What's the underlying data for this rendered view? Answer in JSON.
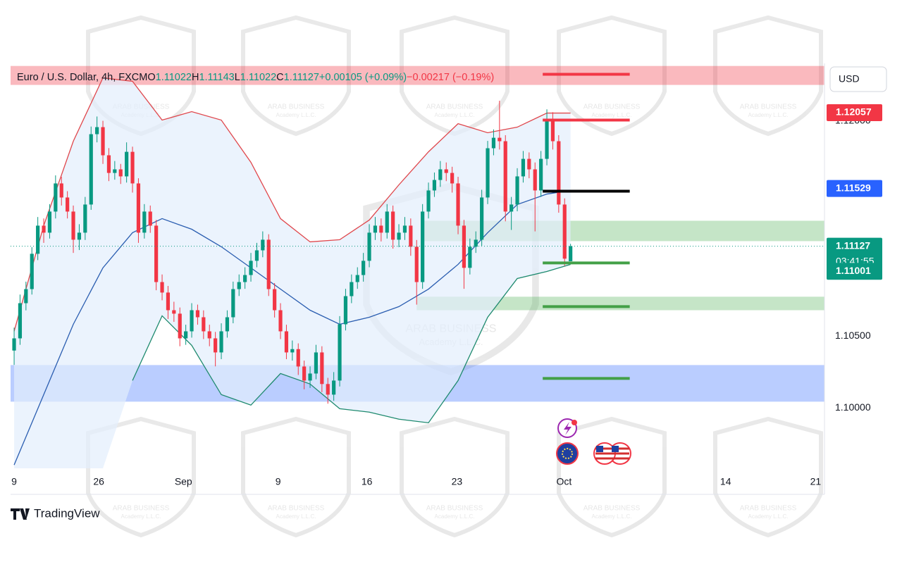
{
  "chart_data": {
    "type": "candlestick",
    "title": "Euro / U.S. Dollar, 4h, FXCM",
    "ohlc_names": [
      "O",
      "H",
      "L",
      "C"
    ],
    "change_text": "+0.00105 (+0.09%)",
    "hidden_change_text": "−0.00217 (−0.19%)",
    "currency": "USD",
    "countdown": "03:41:55",
    "brand": "TradingView",
    "watermark": {
      "name": "ARAB BUSINESS",
      "sub": "Academy L.L.C."
    },
    "up_color": "#089981",
    "down_color": "#f23645",
    "candles": [
      [
        1.104,
        1.1056,
        1.103,
        1.10485
      ],
      [
        1.10485,
        1.1079,
        1.1044,
        1.1073
      ],
      [
        1.1073,
        1.1088,
        1.1068,
        1.10828
      ],
      [
        1.10828,
        1.1112,
        1.1079,
        1.11074
      ],
      [
        1.11074,
        1.1133,
        1.1103,
        1.1127
      ],
      [
        1.1127,
        1.1132,
        1.1115,
        1.11221
      ],
      [
        1.11221,
        1.1142,
        1.1118,
        1.11368
      ],
      [
        1.11368,
        1.1162,
        1.1132,
        1.11564
      ],
      [
        1.11564,
        1.1161,
        1.1141,
        1.11466
      ],
      [
        1.11466,
        1.1151,
        1.1132,
        1.11368
      ],
      [
        1.11368,
        1.1141,
        1.1108,
        1.11172
      ],
      [
        1.11172,
        1.1128,
        1.111,
        1.11221
      ],
      [
        1.11221,
        1.1147,
        1.1117,
        1.11417
      ],
      [
        1.11417,
        1.1196,
        1.1138,
        1.11907
      ],
      [
        1.11907,
        1.1203,
        1.1185,
        1.11956
      ],
      [
        1.11956,
        1.12,
        1.117,
        1.1176
      ],
      [
        1.1176,
        1.1181,
        1.1158,
        1.11637
      ],
      [
        1.11637,
        1.1172,
        1.1159,
        1.11662
      ],
      [
        1.11662,
        1.117,
        1.1156,
        1.11613
      ],
      [
        1.11613,
        1.1185,
        1.1157,
        1.11784
      ],
      [
        1.11784,
        1.1182,
        1.115,
        1.11564
      ],
      [
        1.11564,
        1.116,
        1.1115,
        1.11221
      ],
      [
        1.11221,
        1.1142,
        1.1118,
        1.11368
      ],
      [
        1.11368,
        1.1141,
        1.1122,
        1.1127
      ],
      [
        1.1127,
        1.1131,
        1.1082,
        1.10877
      ],
      [
        1.10877,
        1.1093,
        1.1075,
        1.10804
      ],
      [
        1.10804,
        1.1085,
        1.1062,
        1.10681
      ],
      [
        1.10681,
        1.1074,
        1.106,
        1.10657
      ],
      [
        1.10657,
        1.107,
        1.1043,
        1.10485
      ],
      [
        1.10485,
        1.1058,
        1.1044,
        1.10534
      ],
      [
        1.10534,
        1.1073,
        1.1049,
        1.10681
      ],
      [
        1.10681,
        1.1072,
        1.1058,
        1.10632
      ],
      [
        1.10632,
        1.1068,
        1.1048,
        1.10534
      ],
      [
        1.10534,
        1.1058,
        1.1043,
        1.10485
      ],
      [
        1.10485,
        1.1053,
        1.1029,
        1.10387
      ],
      [
        1.10387,
        1.1059,
        1.1034,
        1.10534
      ],
      [
        1.10534,
        1.1068,
        1.1049,
        1.10632
      ],
      [
        1.10632,
        1.1088,
        1.1059,
        1.10828
      ],
      [
        1.10828,
        1.1093,
        1.1078,
        1.10877
      ],
      [
        1.10877,
        1.1098,
        1.1083,
        1.10926
      ],
      [
        1.10926,
        1.1108,
        1.1088,
        1.11025
      ],
      [
        1.11025,
        1.1115,
        1.1098,
        1.11098
      ],
      [
        1.11098,
        1.1123,
        1.1105,
        1.11172
      ],
      [
        1.11172,
        1.1121,
        1.1078,
        1.10828
      ],
      [
        1.10828,
        1.1087,
        1.1063,
        1.10681
      ],
      [
        1.10681,
        1.1073,
        1.1048,
        1.10534
      ],
      [
        1.10534,
        1.1058,
        1.1034,
        1.10387
      ],
      [
        1.10387,
        1.1047,
        1.1033,
        1.1041
      ],
      [
        1.1041,
        1.1045,
        1.1023,
        1.10289
      ],
      [
        1.10289,
        1.1033,
        1.1013,
        1.10191
      ],
      [
        1.10191,
        1.1029,
        1.1014,
        1.1024
      ],
      [
        1.1024,
        1.1044,
        1.102,
        1.10387
      ],
      [
        1.10387,
        1.1043,
        1.1011,
        1.10167
      ],
      [
        1.10167,
        1.1021,
        1.1003,
        1.10093
      ],
      [
        1.10093,
        1.1025,
        1.1005,
        1.10191
      ],
      [
        1.10191,
        1.1064,
        1.1015,
        1.10583
      ],
      [
        1.10583,
        1.1083,
        1.1054,
        1.10779
      ],
      [
        1.10779,
        1.1093,
        1.1073,
        1.10877
      ],
      [
        1.10877,
        1.1098,
        1.1083,
        1.10926
      ],
      [
        1.10926,
        1.1108,
        1.1088,
        1.11025
      ],
      [
        1.11025,
        1.1128,
        1.1098,
        1.11221
      ],
      [
        1.11221,
        1.1133,
        1.1117,
        1.1127
      ],
      [
        1.1127,
        1.1132,
        1.1116,
        1.11221
      ],
      [
        1.11221,
        1.1142,
        1.1118,
        1.11368
      ],
      [
        1.11368,
        1.1141,
        1.1111,
        1.11172
      ],
      [
        1.11172,
        1.1128,
        1.1112,
        1.11221
      ],
      [
        1.11221,
        1.1133,
        1.1117,
        1.1127
      ],
      [
        1.1127,
        1.1132,
        1.1106,
        1.11123
      ],
      [
        1.11123,
        1.1117,
        1.1072,
        1.10877
      ],
      [
        1.10877,
        1.1142,
        1.1083,
        1.11368
      ],
      [
        1.11368,
        1.1157,
        1.1132,
        1.11515
      ],
      [
        1.11515,
        1.1164,
        1.1147,
        1.11588
      ],
      [
        1.11588,
        1.1172,
        1.1154,
        1.11662
      ],
      [
        1.11662,
        1.1171,
        1.1158,
        1.11637
      ],
      [
        1.11637,
        1.1168,
        1.115,
        1.11564
      ],
      [
        1.11564,
        1.1161,
        1.1121,
        1.1127
      ],
      [
        1.1127,
        1.1131,
        1.1083,
        1.10976
      ],
      [
        1.10976,
        1.1118,
        1.1093,
        1.11123
      ],
      [
        1.11123,
        1.1123,
        1.1108,
        1.11172
      ],
      [
        1.11172,
        1.1152,
        1.1113,
        1.11466
      ],
      [
        1.11466,
        1.1186,
        1.1142,
        1.11809
      ],
      [
        1.11809,
        1.1194,
        1.1176,
        1.11882
      ],
      [
        1.11882,
        1.1214,
        1.118,
        1.11858
      ],
      [
        1.11858,
        1.119,
        1.113,
        1.11368
      ],
      [
        1.11368,
        1.1147,
        1.1124,
        1.11417
      ],
      [
        1.11417,
        1.1167,
        1.1137,
        1.11613
      ],
      [
        1.11613,
        1.1179,
        1.1157,
        1.11735
      ],
      [
        1.11735,
        1.1178,
        1.116,
        1.11662
      ],
      [
        1.11662,
        1.1171,
        1.1123,
        1.11515
      ],
      [
        1.11515,
        1.1179,
        1.1147,
        1.11735
      ],
      [
        1.11735,
        1.1208,
        1.1169,
        1.12005
      ],
      [
        1.12005,
        1.1206,
        1.118,
        1.11858
      ],
      [
        1.11858,
        1.119,
        1.1136,
        1.11417
      ],
      [
        1.11417,
        1.1146,
        1.1099,
        1.1104
      ],
      [
        1.11022,
        1.11143,
        1.11022,
        1.11127
      ]
    ],
    "bands": {
      "x": [
        0,
        5,
        10,
        15,
        20,
        25,
        30,
        35,
        40,
        45,
        50,
        55,
        60,
        65,
        70,
        75,
        80,
        85,
        90,
        94
      ],
      "fill": "#e3eefc",
      "series": [
        {
          "color": "#e0474c",
          "values": [
            1.10534,
            1.1127,
            1.11858,
            1.12299,
            1.12275,
            1.12005,
            1.12064,
            1.12005,
            1.11711,
            1.11319,
            1.11157,
            1.11172,
            1.11309,
            1.11554,
            1.11784,
            1.1198,
            1.11917,
            1.11956,
            1.12054,
            1.12054
          ]
        },
        {
          "color": "#2a5db0",
          "values": [
            1.09603,
            1.10093,
            1.10583,
            1.10976,
            1.11221,
            1.11319,
            1.11245,
            1.11123,
            1.10976,
            1.10828,
            1.10681,
            1.10583,
            1.10632,
            1.10706,
            1.10828,
            1.11,
            1.11221,
            1.11417,
            1.1149,
            1.11515
          ]
        },
        {
          "color": "#1e8a6e",
          "values": [
            null,
            null,
            null,
            null,
            1.10191,
            1.10642,
            1.10436,
            1.10093,
            1.1002,
            1.1024,
            1.10167,
            1.09995,
            1.09971,
            1.09922,
            1.09897,
            1.10191,
            1.10632,
            1.10902,
            1.10951,
            1.11
          ]
        }
      ]
    },
    "zones": [
      {
        "y": [
          1.1225,
          1.12382
        ],
        "color": "rgba(242,54,69,0.35)"
      },
      {
        "y": [
          1.11162,
          1.11304
        ],
        "x": [
          69,
          136.9
        ],
        "color": "rgba(76,175,80,0.32)"
      },
      {
        "y": [
          1.10681,
          1.10775
        ],
        "x": [
          68,
          136.9
        ],
        "color": "rgba(76,175,80,0.32)"
      },
      {
        "y": [
          1.10044,
          1.10299
        ],
        "color": "rgba(41,98,255,0.32)"
      }
    ],
    "levels": [
      {
        "value": 1.12324,
        "x": [
          89.3,
          104
        ],
        "color": "#f23645"
      },
      {
        "value": 1.12005,
        "x": [
          89.3,
          104
        ],
        "color": "#f23645"
      },
      {
        "value": 1.1151,
        "x": [
          89.3,
          104
        ],
        "color": "#000000"
      },
      {
        "value": 1.1101,
        "x": [
          89.3,
          104
        ],
        "color": "#43a047"
      },
      {
        "value": 1.10706,
        "x": [
          89.3,
          104
        ],
        "color": "#43a047"
      },
      {
        "value": 1.10206,
        "x": [
          89.3,
          104
        ],
        "color": "#43a047"
      }
    ],
    "price_tags": [
      {
        "value": 1.12057,
        "color": "#f23645"
      },
      {
        "value": 1.11529,
        "color": "#2962ff"
      },
      {
        "value": 1.11127,
        "color": "#089981"
      },
      {
        "value": 1.11001,
        "color": "#089981"
      }
    ],
    "xlim": [
      -0.6,
      136.9
    ],
    "ylim": [
      1.0958,
      1.124
    ],
    "xticks": [
      {
        "value": 0,
        "label": "9"
      },
      {
        "value": 14.3,
        "label": "26"
      },
      {
        "value": 28.6,
        "label": "Sep"
      },
      {
        "value": 44.6,
        "label": "9"
      },
      {
        "value": 59.6,
        "label": "16"
      },
      {
        "value": 74.8,
        "label": "23"
      },
      {
        "value": 92.9,
        "label": "Oct"
      },
      {
        "value": 120.2,
        "label": "14"
      },
      {
        "value": 135.4,
        "label": "21"
      }
    ],
    "yticks": [
      {
        "value": 1.1,
        "label": "1.10000"
      },
      {
        "value": 1.105,
        "label": "1.10500"
      },
      {
        "value": 1.12,
        "label": "1.12000"
      }
    ],
    "grid": false
  }
}
